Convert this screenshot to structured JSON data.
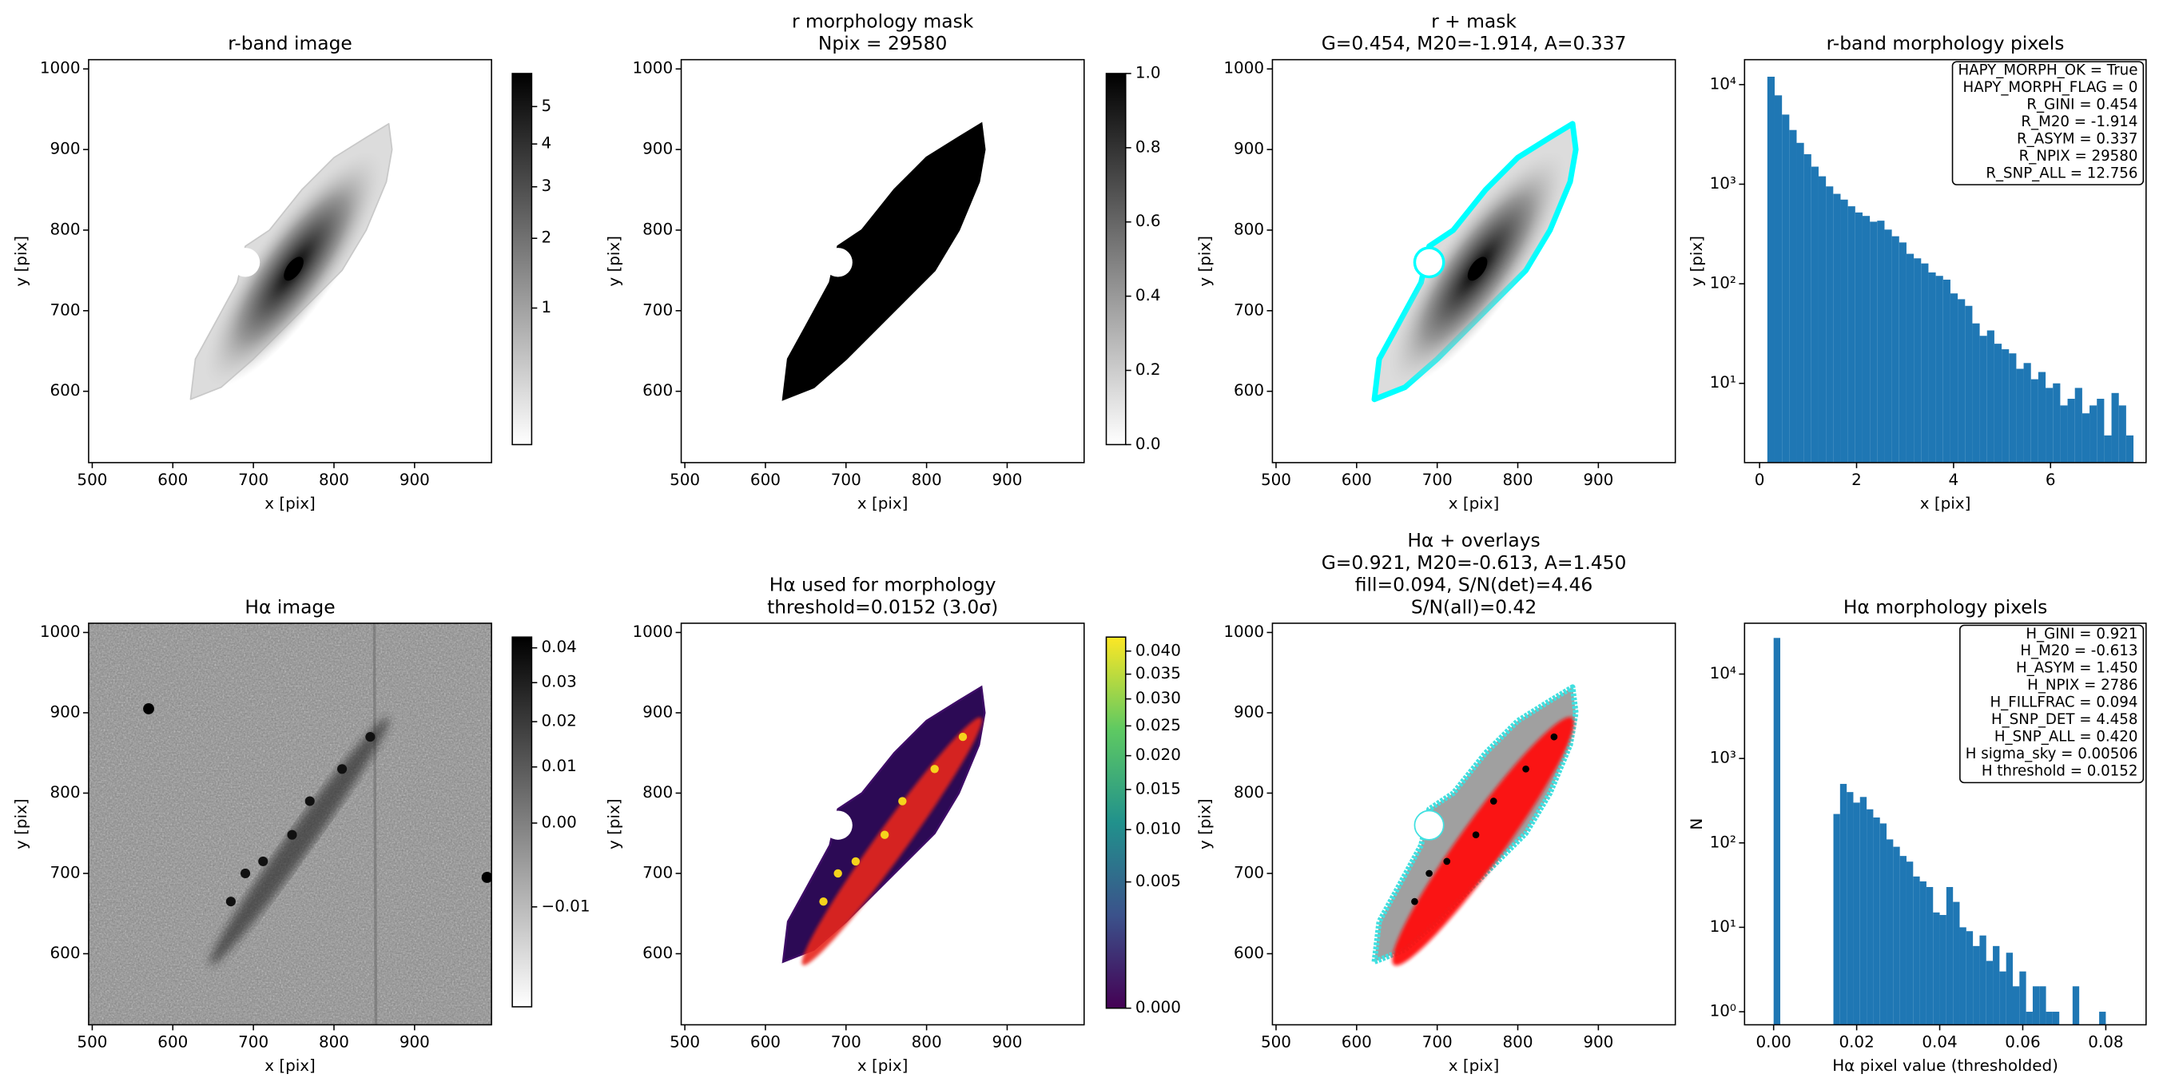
{
  "chart_data": [
    {
      "type": "image",
      "title": [
        "r-band image"
      ],
      "xlabel": "x [pix]",
      "ylabel": "y [pix]",
      "xlim": [
        495.5,
        995.5
      ],
      "ylim": [
        511.5,
        1011.5
      ],
      "xticks": [
        500,
        600,
        700,
        800,
        900
      ],
      "yticks": [
        600,
        700,
        800,
        900,
        1000
      ],
      "colorbar": {
        "colors": [
          "#ffffff",
          "#000000"
        ],
        "scale": "sqrt",
        "clim": [
          0.22,
          5.98
        ],
        "ticks": [
          1,
          2,
          3,
          4,
          5
        ]
      }
    },
    {
      "type": "image",
      "title": [
        "r morphology mask",
        "Npix = 29580"
      ],
      "xlabel": "x [pix]",
      "ylabel": "y [pix]",
      "xlim": [
        495.5,
        995.5
      ],
      "ylim": [
        511.5,
        1011.5
      ],
      "xticks": [
        500,
        600,
        700,
        800,
        900
      ],
      "yticks": [
        600,
        700,
        800,
        900,
        1000
      ],
      "colorbar": {
        "colors": [
          "#ffffff",
          "#000000"
        ],
        "scale": "linear",
        "clim": [
          0,
          1
        ],
        "ticks": [
          {
            "value": 0,
            "label": "0.0"
          },
          0.2,
          0.4,
          0.6,
          0.8,
          {
            "value": 1,
            "label": "1.0"
          }
        ]
      }
    },
    {
      "type": "image",
      "title": [
        "r + mask",
        "G=0.454, M20=-1.914, A=0.337"
      ],
      "xlabel": "x [pix]",
      "ylabel": "y [pix]",
      "xlim": [
        495.5,
        995.5
      ],
      "ylim": [
        511.5,
        1011.5
      ],
      "xticks": [
        500,
        600,
        700,
        800,
        900
      ],
      "yticks": [
        600,
        700,
        800,
        900,
        1000
      ]
    },
    {
      "type": "histogram",
      "title": [
        "r-band morphology pixels"
      ],
      "xlabel": "x [pix]",
      "ylabel": "y [pix]",
      "color": "#1f77b4",
      "ylog": true,
      "xlim": [
        -0.31,
        7.97
      ],
      "ylim": [
        1.6,
        17800
      ],
      "xticks": [
        0,
        2,
        4,
        6
      ],
      "yticks": [
        {
          "value": 10,
          "label": "10¹"
        },
        {
          "value": 100,
          "label": "10²"
        },
        {
          "value": 1000,
          "label": "10³"
        },
        {
          "value": 10000,
          "label": "10⁴"
        }
      ],
      "bins": [
        0.16,
        0.311,
        0.462,
        0.613,
        0.764,
        0.915,
        1.066,
        1.217,
        1.368,
        1.519,
        1.67,
        1.821,
        1.972,
        2.123,
        2.274,
        2.425,
        2.576,
        2.727,
        2.878,
        3.029,
        3.18,
        3.331,
        3.482,
        3.633,
        3.784,
        3.935,
        4.086,
        4.237,
        4.388,
        4.539,
        4.69,
        4.841,
        4.992,
        5.143,
        5.294,
        5.445,
        5.596,
        5.747,
        5.898,
        6.049,
        6.2,
        6.351,
        6.502,
        6.653,
        6.804,
        6.955,
        7.106,
        7.257,
        7.408,
        7.559,
        7.71
      ],
      "counts": [
        12000,
        7800,
        5000,
        3500,
        2600,
        2000,
        1500,
        1200,
        950,
        800,
        700,
        600,
        520,
        480,
        420,
        430,
        350,
        300,
        260,
        200,
        180,
        160,
        130,
        120,
        110,
        80,
        70,
        60,
        40,
        30,
        34,
        25,
        22,
        20,
        14,
        16,
        11,
        13,
        9,
        10,
        6,
        7,
        9,
        5,
        6,
        7,
        3,
        8,
        6,
        3
      ],
      "annotations": [
        "HAPY_MORPH_OK = True",
        "HAPY_MORPH_FLAG = 0",
        "R_GINI = 0.454",
        "R_M20 = -1.914",
        "R_ASYM = 0.337",
        "R_NPIX = 29580",
        "R_SNP_ALL = 12.756"
      ]
    },
    {
      "type": "image",
      "title": [
        "Hα image"
      ],
      "xlabel": "x [pix]",
      "ylabel": "y [pix]",
      "xlim": [
        495.5,
        995.5
      ],
      "ylim": [
        511.5,
        1011.5
      ],
      "xticks": [
        500,
        600,
        700,
        800,
        900
      ],
      "yticks": [
        600,
        700,
        800,
        900,
        1000
      ],
      "colorbar": {
        "colors": [
          "#ffffff",
          "#000000"
        ],
        "scale": "sqrt",
        "clim": [
          -0.0142,
          0.0433
        ],
        "ticks": [
          {
            "value": -0.01,
            "label": "−0.01"
          },
          {
            "value": 0,
            "label": "0.00"
          },
          0.01,
          0.02,
          0.03,
          0.04
        ]
      }
    },
    {
      "type": "image",
      "title": [
        "Hα used for morphology",
        "threshold=0.0152 (3.0σ)"
      ],
      "xlabel": "x [pix]",
      "ylabel": "y [pix]",
      "xlim": [
        495.5,
        995.5
      ],
      "ylim": [
        511.5,
        1011.5
      ],
      "xticks": [
        500,
        600,
        700,
        800,
        900
      ],
      "yticks": [
        600,
        700,
        800,
        900,
        1000
      ],
      "colorbar": {
        "colors": [
          "#440154",
          "#3b528b",
          "#21918c",
          "#5ec962",
          "#fde725"
        ],
        "scale": "sqrt",
        "clim": [
          0,
          0.0432
        ],
        "ticks": [
          {
            "value": 0,
            "label": "0.000"
          },
          0.005,
          {
            "value": 0.01,
            "label": "0.010"
          },
          0.015,
          {
            "value": 0.02,
            "label": "0.020"
          },
          0.025,
          {
            "value": 0.03,
            "label": "0.030"
          },
          0.035,
          {
            "value": 0.04,
            "label": "0.040"
          }
        ]
      }
    },
    {
      "type": "image",
      "title": [
        "Hα + overlays",
        "G=0.921, M20=-0.613, A=1.450",
        "fill=0.094, S/N(det)=4.46",
        "S/N(all)=0.42"
      ],
      "xlabel": "x [pix]",
      "ylabel": "y [pix]",
      "xlim": [
        495.5,
        995.5
      ],
      "ylim": [
        511.5,
        1011.5
      ],
      "xticks": [
        500,
        600,
        700,
        800,
        900
      ],
      "yticks": [
        600,
        700,
        800,
        900,
        1000
      ]
    },
    {
      "type": "histogram",
      "title": [
        "Hα morphology pixels"
      ],
      "xlabel": "Hα pixel value (thresholded)",
      "ylabel": "N",
      "color": "#1f77b4",
      "ylog": true,
      "xlim": [
        -0.007,
        0.0897
      ],
      "ylim": [
        0.7,
        40000
      ],
      "xticks": [
        {
          "value": 0,
          "label": "0.00"
        },
        0.02,
        0.04,
        0.06,
        0.08
      ],
      "yticks": [
        {
          "value": 1,
          "label": "10⁰"
        },
        {
          "value": 10,
          "label": "10¹"
        },
        {
          "value": 100,
          "label": "10²"
        },
        {
          "value": 1000,
          "label": "10³"
        },
        {
          "value": 10000,
          "label": "10⁴"
        }
      ],
      "bins": [
        0,
        0.0016,
        0.0032,
        0.0048,
        0.0064,
        0.008,
        0.0096,
        0.0112,
        0.0128,
        0.0144,
        0.016,
        0.0176,
        0.0192,
        0.0208,
        0.0224,
        0.024,
        0.0256,
        0.0272,
        0.0288,
        0.0304,
        0.032,
        0.0336,
        0.0352,
        0.0368,
        0.0384,
        0.04,
        0.0416,
        0.0432,
        0.0448,
        0.0464,
        0.048,
        0.0496,
        0.0512,
        0.0528,
        0.0544,
        0.056,
        0.0576,
        0.0592,
        0.0608,
        0.0624,
        0.064,
        0.0656,
        0.0672,
        0.0688,
        0.0704,
        0.072,
        0.0736,
        0.0752,
        0.0768,
        0.0784,
        0.08
      ],
      "counts": [
        26794,
        0,
        0,
        0,
        0,
        0,
        0,
        0,
        0,
        220,
        500,
        400,
        300,
        350,
        250,
        200,
        170,
        110,
        90,
        70,
        60,
        40,
        35,
        30,
        15,
        14,
        30,
        20,
        10,
        9,
        6,
        8,
        4,
        6,
        3,
        5,
        2,
        3,
        1,
        2,
        2,
        1,
        1,
        0,
        0,
        2,
        0,
        0,
        0,
        1
      ],
      "annotations": [
        "H_GINI = 0.921",
        "H_M20 = -0.613",
        "H_ASYM = 1.450",
        "H_NPIX = 2786",
        "H_FILLFRAC = 0.094",
        "H_SNP_DET = 4.458",
        "H_SNP_ALL = 0.420",
        "H sigma_sky = 0.00506",
        "H threshold = 0.0152"
      ]
    }
  ]
}
